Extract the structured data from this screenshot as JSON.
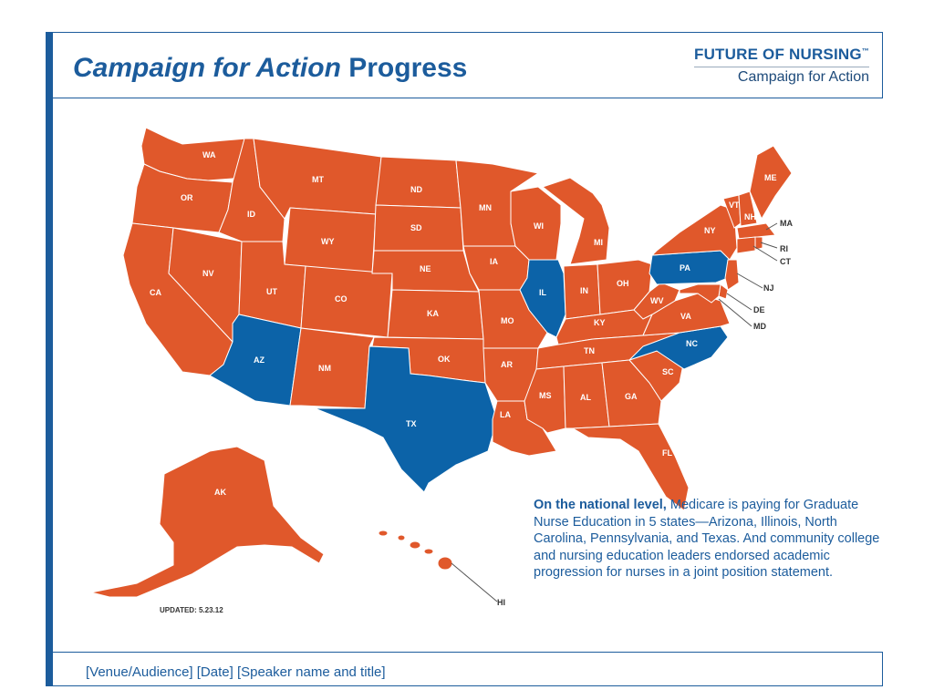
{
  "title": {
    "italic": "Campaign for Action",
    "rest": "Progress"
  },
  "logo": {
    "top": "FUTURE OF NURSING",
    "tm": "™",
    "bottom": "Campaign for Action"
  },
  "colors": {
    "default_state": "#e0582b",
    "highlight_state": "#0c63a8",
    "brand": "#1c5c9c"
  },
  "map": {
    "highlighted_states": [
      "AZ",
      "IL",
      "NC",
      "PA",
      "TX"
    ],
    "labels": [
      "WA",
      "OR",
      "CA",
      "ID",
      "NV",
      "MT",
      "WY",
      "UT",
      "AZ",
      "CO",
      "NM",
      "ND",
      "SD",
      "NE",
      "KA",
      "OK",
      "TX",
      "MN",
      "IA",
      "MO",
      "AR",
      "LA",
      "WI",
      "IL",
      "MI",
      "IN",
      "OH",
      "KY",
      "TN",
      "MS",
      "AL",
      "GA",
      "FL",
      "SC",
      "NC",
      "VA",
      "WV",
      "PA",
      "NY",
      "VT",
      "NH",
      "ME",
      "MA",
      "RI",
      "CT",
      "NJ",
      "DE",
      "MD",
      "AK",
      "HI"
    ],
    "updated": "UPDATED: 5.23.12"
  },
  "info": {
    "bold": "On the national level,",
    "text": " Medicare is paying for Graduate Nurse Education in 5 states—Arizona, Illinois, North Carolina, Pennsylvania, and Texas. And community college and nursing education leaders endorsed academic progression for nurses in a joint position statement."
  },
  "footer": {
    "text": "[Venue/Audience] [Date] [Speaker name and title]"
  }
}
